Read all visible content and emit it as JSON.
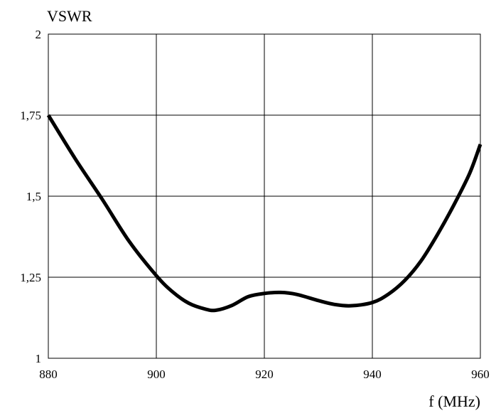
{
  "chart_data": {
    "type": "line",
    "title": "",
    "ylabel": "VSWR",
    "xlabel": "f (MHz)",
    "xlim": [
      880,
      960
    ],
    "ylim": [
      1,
      2
    ],
    "grid": true,
    "x_ticks": [
      880,
      900,
      920,
      940,
      960
    ],
    "x_tick_labels": [
      "880",
      "900",
      "920",
      "940",
      "960"
    ],
    "y_ticks": [
      1,
      1.25,
      1.5,
      1.75,
      2
    ],
    "y_tick_labels": [
      "1",
      "1,25",
      "1,5",
      "1,75",
      "2"
    ],
    "series": [
      {
        "color": "#000000",
        "x": [
          880,
          885,
          890,
          895,
          900,
          903,
          906,
          909,
          911,
          914,
          917,
          920,
          923,
          926,
          930,
          933,
          936,
          940,
          943,
          946,
          949,
          952,
          955,
          958,
          960
        ],
        "y": [
          1.75,
          1.615,
          1.49,
          1.36,
          1.255,
          1.205,
          1.17,
          1.152,
          1.148,
          1.163,
          1.19,
          1.2,
          1.203,
          1.197,
          1.178,
          1.166,
          1.162,
          1.172,
          1.198,
          1.24,
          1.3,
          1.38,
          1.47,
          1.57,
          1.66
        ]
      }
    ]
  }
}
